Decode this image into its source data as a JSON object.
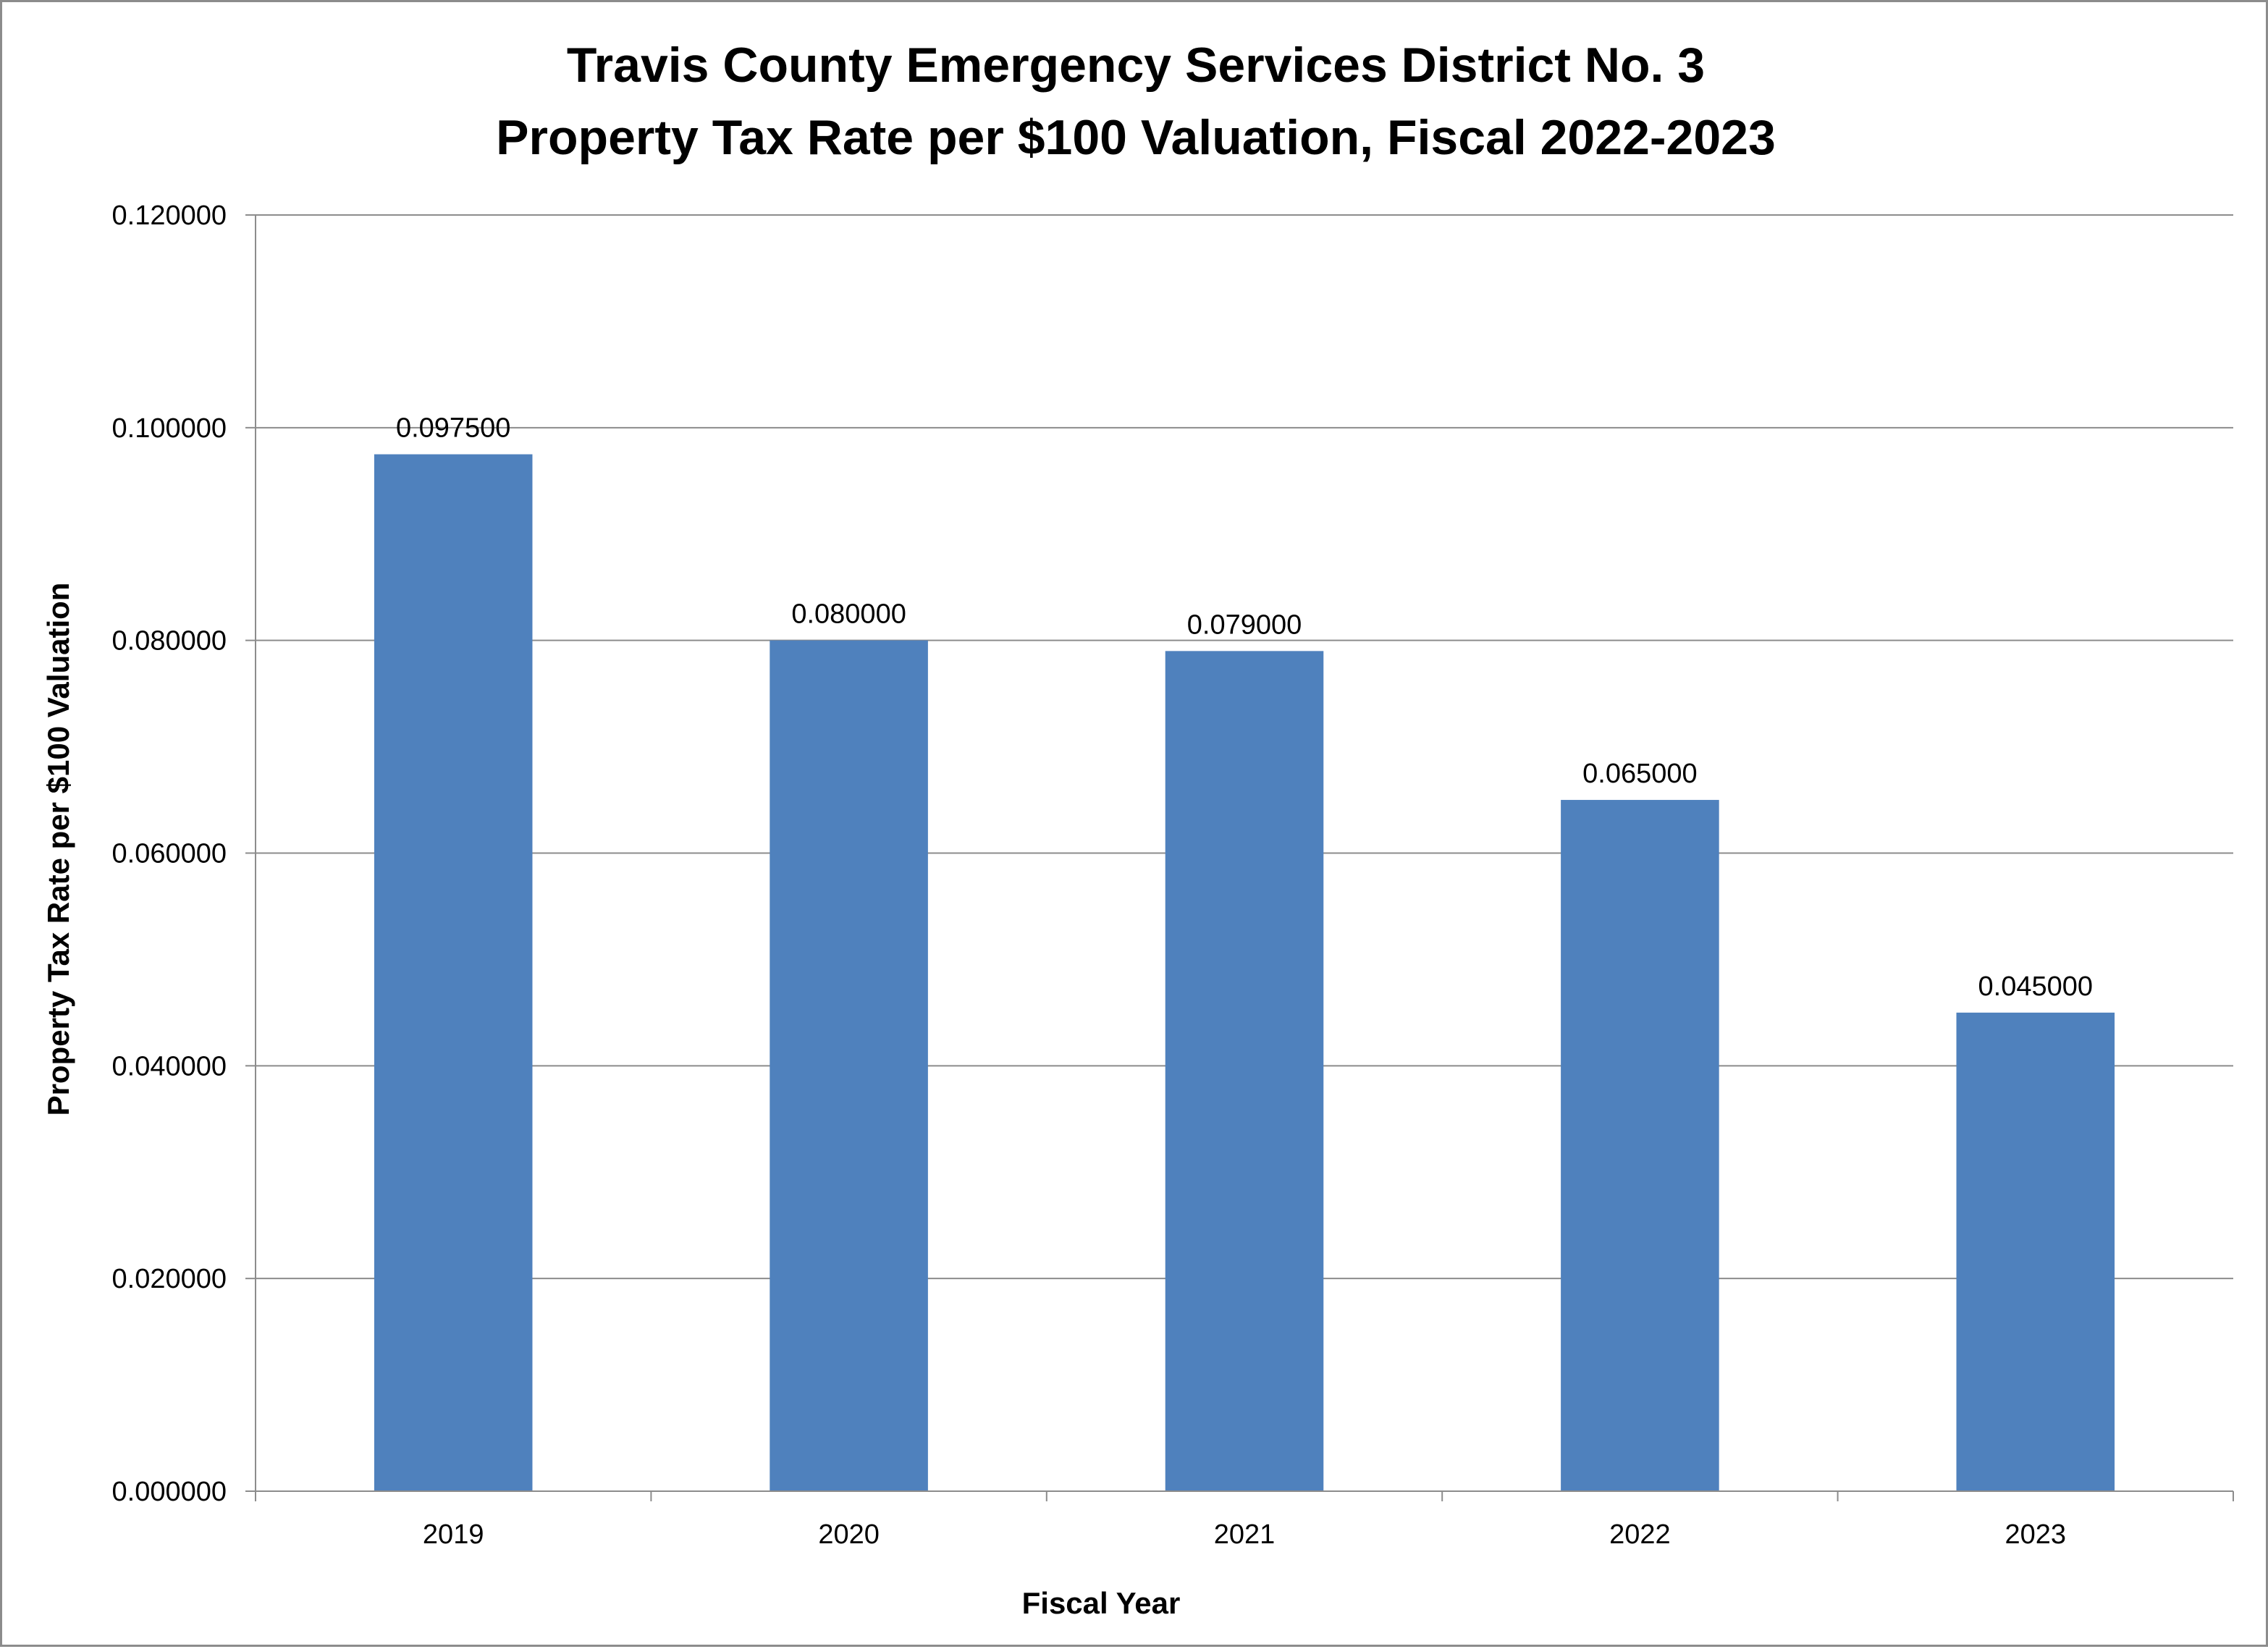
{
  "chart_data": {
    "type": "bar",
    "title_lines": [
      "Travis County Emergency Services District No. 3",
      "Property Tax Rate per $100 Valuation, Fiscal 2022-2023"
    ],
    "xlabel": "Fiscal Year",
    "ylabel": "Property Tax Rate per $100 Valuation",
    "categories": [
      "2019",
      "2020",
      "2021",
      "2022",
      "2023"
    ],
    "values": [
      0.0975,
      0.08,
      0.079,
      0.065,
      0.045
    ],
    "data_labels": [
      "0.097500",
      "0.080000",
      "0.079000",
      "0.065000",
      "0.045000"
    ],
    "ylim": [
      0,
      0.12
    ],
    "yticks": [
      0,
      0.02,
      0.04,
      0.06,
      0.08,
      0.1,
      0.12
    ],
    "ytick_labels": [
      "0.000000",
      "0.020000",
      "0.040000",
      "0.060000",
      "0.080000",
      "0.100000",
      "0.120000"
    ],
    "grid": true,
    "legend": "none",
    "bar_color": "#4F81BD",
    "grid_color": "#8c8c8c"
  }
}
